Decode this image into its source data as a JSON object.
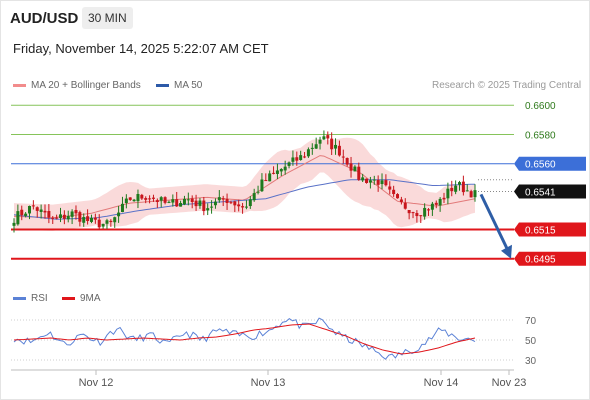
{
  "header": {
    "pair": "AUD/USD",
    "timeframe": "30 MIN",
    "datetime": "Friday, November 14, 2025 5:22:07 AM CET"
  },
  "legend_top": {
    "items": [
      {
        "label": "MA 20 + Bollinger Bands",
        "color": "#f28c8c"
      },
      {
        "label": "MA 50",
        "color": "#2d5aa8"
      }
    ]
  },
  "copyright": "Research © 2025 Trading Central",
  "legend_rsi": {
    "items": [
      {
        "label": "RSI",
        "color": "#5b82d6"
      },
      {
        "label": "9MA",
        "color": "#e0161b"
      }
    ]
  },
  "colors": {
    "bull": "#1e7a1e",
    "bear": "#c8161d",
    "bollinger_fill": "#f9d3d3",
    "ma20": "#e27a7a",
    "ma50": "#5a72c8",
    "green_level": "#86c45a",
    "blue_level": "#3c6fd8",
    "red_level": "#e0161b",
    "arrow": "#2e5ea6",
    "current_price_tag": "#111111"
  },
  "chart_data": [
    {
      "type": "candlestick",
      "title": "AUD/USD 30 MIN",
      "ylim": [
        0.6477,
        0.6607
      ],
      "x_tick_labels": [
        "Nov 12",
        "Nov 13",
        "Nov 14",
        "Nov 23"
      ],
      "levels": [
        {
          "value": "0.6600",
          "kind": "resistance-2"
        },
        {
          "value": "0.6580",
          "kind": "resistance-1"
        },
        {
          "value": "0.6560",
          "kind": "pivot"
        },
        {
          "value": "0.6515",
          "kind": "support-1"
        },
        {
          "value": "0.6495",
          "kind": "support-2"
        }
      ],
      "current_price": "0.6541",
      "projection": {
        "from": 0.6539,
        "to": 0.6495
      },
      "key_closes": [
        0.6523,
        0.6531,
        0.6521,
        0.6526,
        0.652,
        0.6518,
        0.6536,
        0.6538,
        0.6532,
        0.6536,
        0.653,
        0.6536,
        0.653,
        0.6548,
        0.6557,
        0.6565,
        0.6578,
        0.6568,
        0.655,
        0.6548,
        0.6533,
        0.6527,
        0.6532,
        0.6546,
        0.6539
      ],
      "ma50_values": [
        0.6525,
        0.6522,
        0.6523,
        0.6528,
        0.6532,
        0.6534,
        0.6536,
        0.6544,
        0.6549,
        0.6549,
        0.6545,
        0.6546
      ],
      "ma20_values": [
        0.6524,
        0.6523,
        0.6526,
        0.6533,
        0.6535,
        0.6537,
        0.6535,
        0.6552,
        0.6566,
        0.6554,
        0.6534,
        0.6531,
        0.6536
      ]
    },
    {
      "type": "line",
      "title": "RSI",
      "ylim": [
        20,
        80
      ],
      "y_ticks": [
        "70",
        "50",
        "30"
      ],
      "series": [
        {
          "name": "RSI",
          "values": [
            52,
            48,
            58,
            45,
            56,
            48,
            62,
            50,
            55,
            45,
            58,
            50,
            60,
            55,
            54,
            60,
            72,
            62,
            70,
            55,
            48,
            40,
            32,
            38,
            46,
            60,
            52,
            50
          ]
        },
        {
          "name": "9MA",
          "values": [
            50,
            51,
            52,
            50,
            52,
            50,
            51,
            52,
            51,
            50,
            52,
            53,
            56,
            60,
            62,
            65,
            66,
            60,
            54,
            46,
            40,
            36,
            38,
            42,
            48,
            52
          ]
        }
      ]
    }
  ]
}
